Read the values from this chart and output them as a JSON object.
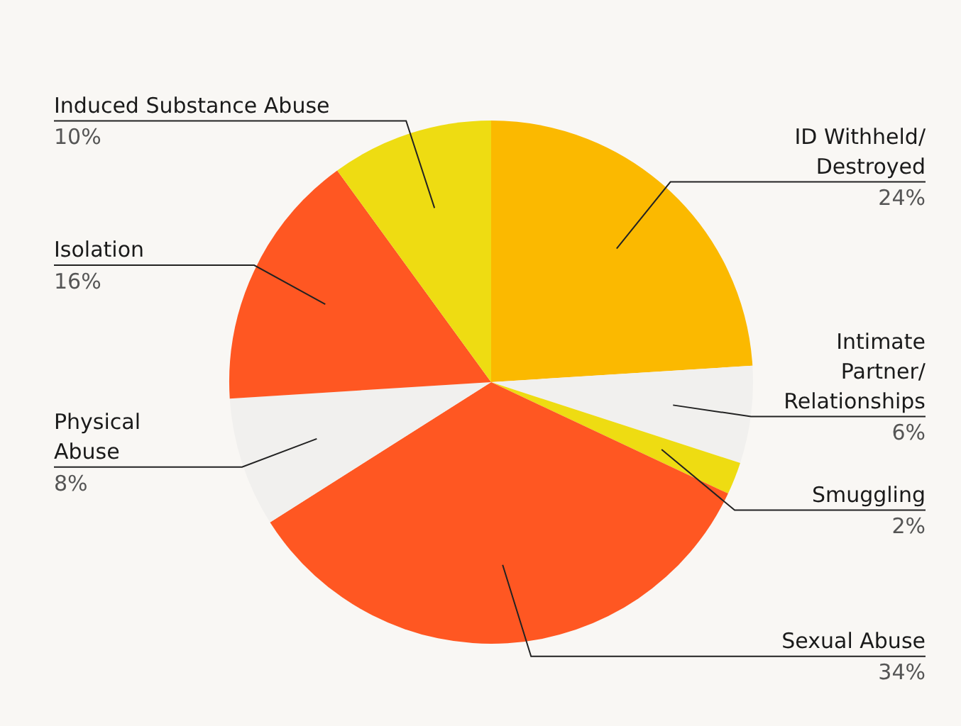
{
  "chart_data": {
    "type": "pie",
    "categories": [
      "ID Withheld/\nDestroyed",
      "Intimate\nPartner/\nRelationships",
      "Smuggling",
      "Sexual Abuse",
      "Physical\nAbuse",
      "Isolation",
      "Induced Substance Abuse"
    ],
    "values": [
      24,
      6,
      2,
      34,
      8,
      16,
      10
    ],
    "colors": [
      "#fbb900",
      "#f1f0ee",
      "#eedc12",
      "#ff5722",
      "#f1f0ee",
      "#ff5722",
      "#eedc12"
    ],
    "value_labels": [
      "24%",
      "6%",
      "2%",
      "34%",
      "8%",
      "16%",
      "10%"
    ],
    "legend": false
  }
}
